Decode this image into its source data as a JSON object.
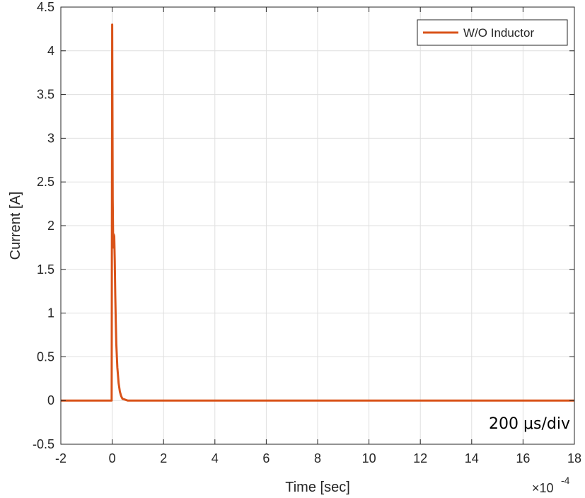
{
  "chart_data": {
    "type": "line",
    "title": "",
    "xlabel": "Time [sec]",
    "ylabel": "Current [A]",
    "x_exponent_base": "×10",
    "x_exponent_power": "-4",
    "xlim": [
      -2,
      18
    ],
    "ylim": [
      -0.5,
      4.5
    ],
    "x_ticks": [
      -2,
      0,
      2,
      4,
      6,
      8,
      10,
      12,
      14,
      16,
      18
    ],
    "x_tick_labels": [
      "-2",
      "0",
      "2",
      "4",
      "6",
      "8",
      "10",
      "12",
      "14",
      "16",
      "18"
    ],
    "y_ticks": [
      -0.5,
      0,
      0.5,
      1,
      1.5,
      2,
      2.5,
      3,
      3.5,
      4,
      4.5
    ],
    "y_tick_labels": [
      "-0.5",
      "0",
      "0.5",
      "1",
      "1.5",
      "2",
      "2.5",
      "3",
      "3.5",
      "4",
      "4.5"
    ],
    "grid": true,
    "legend_position": "top-right",
    "annotation": "200 μs/div",
    "series": [
      {
        "name": "W/O Inductor",
        "color": "#D95319",
        "x": [
          -2,
          -0.02,
          0,
          0.02,
          0.04,
          0.06,
          0.08,
          0.1,
          0.12,
          0.14,
          0.16,
          0.2,
          0.25,
          0.3,
          0.35,
          0.4,
          0.5,
          0.6,
          0.8,
          1.0,
          18
        ],
        "y": [
          0,
          0,
          4.3,
          2.3,
          1.75,
          1.9,
          1.88,
          1.6,
          1.2,
          0.9,
          0.65,
          0.38,
          0.2,
          0.1,
          0.05,
          0.02,
          0.01,
          0,
          0,
          0,
          0
        ]
      }
    ]
  }
}
